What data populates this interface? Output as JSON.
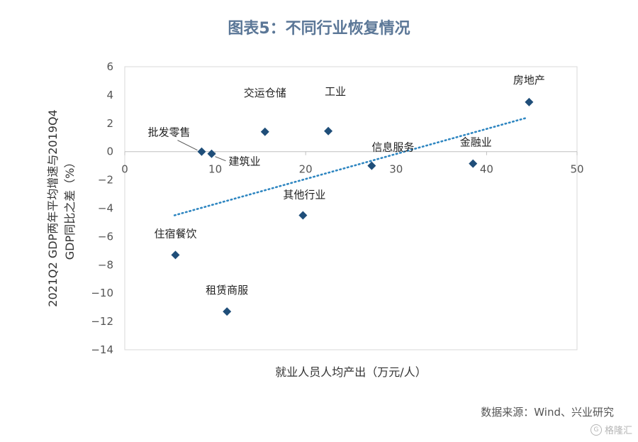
{
  "header": {
    "title": "图表5：不同行业恢复情况"
  },
  "footer": {
    "source": "数据来源：Wind、兴业研究",
    "watermark": "格隆汇"
  },
  "chart_data": {
    "type": "scatter",
    "title": "图表5：不同行业恢复情况",
    "xlabel": "就业人员人均产出（万元/人）",
    "ylabel": [
      "2021Q2 GDP两年平均增速与2019Q4",
      "GDP同比之差（%）"
    ],
    "xlim": [
      0,
      50
    ],
    "ylim": [
      -14,
      6
    ],
    "xticks": [
      0,
      10,
      20,
      30,
      40,
      50
    ],
    "yticks": [
      6,
      4,
      2,
      0,
      -2,
      -4,
      -6,
      -8,
      -10,
      -12,
      -14
    ],
    "grid": false,
    "marker_color": "#1f4e79",
    "trendline": {
      "style": "dotted",
      "color": "#2e86c1",
      "from": [
        5.5,
        -4.5
      ],
      "to": [
        44.5,
        2.4
      ]
    },
    "points": [
      {
        "label": "批发零售",
        "x": 8.5,
        "y": 0.0
      },
      {
        "label": "建筑业",
        "x": 9.6,
        "y": -0.15
      },
      {
        "label": "交运仓储",
        "x": 15.5,
        "y": 1.4
      },
      {
        "label": "工业",
        "x": 22.5,
        "y": 1.45
      },
      {
        "label": "信息服务",
        "x": 27.3,
        "y": -1.0
      },
      {
        "label": "其他行业",
        "x": 19.7,
        "y": -4.5
      },
      {
        "label": "住宿餐饮",
        "x": 5.6,
        "y": -7.3
      },
      {
        "label": "租赁商服",
        "x": 11.3,
        "y": -11.3
      },
      {
        "label": "金融业",
        "x": 38.5,
        "y": -0.85
      },
      {
        "label": "房地产",
        "x": 44.7,
        "y": 3.5
      }
    ]
  }
}
